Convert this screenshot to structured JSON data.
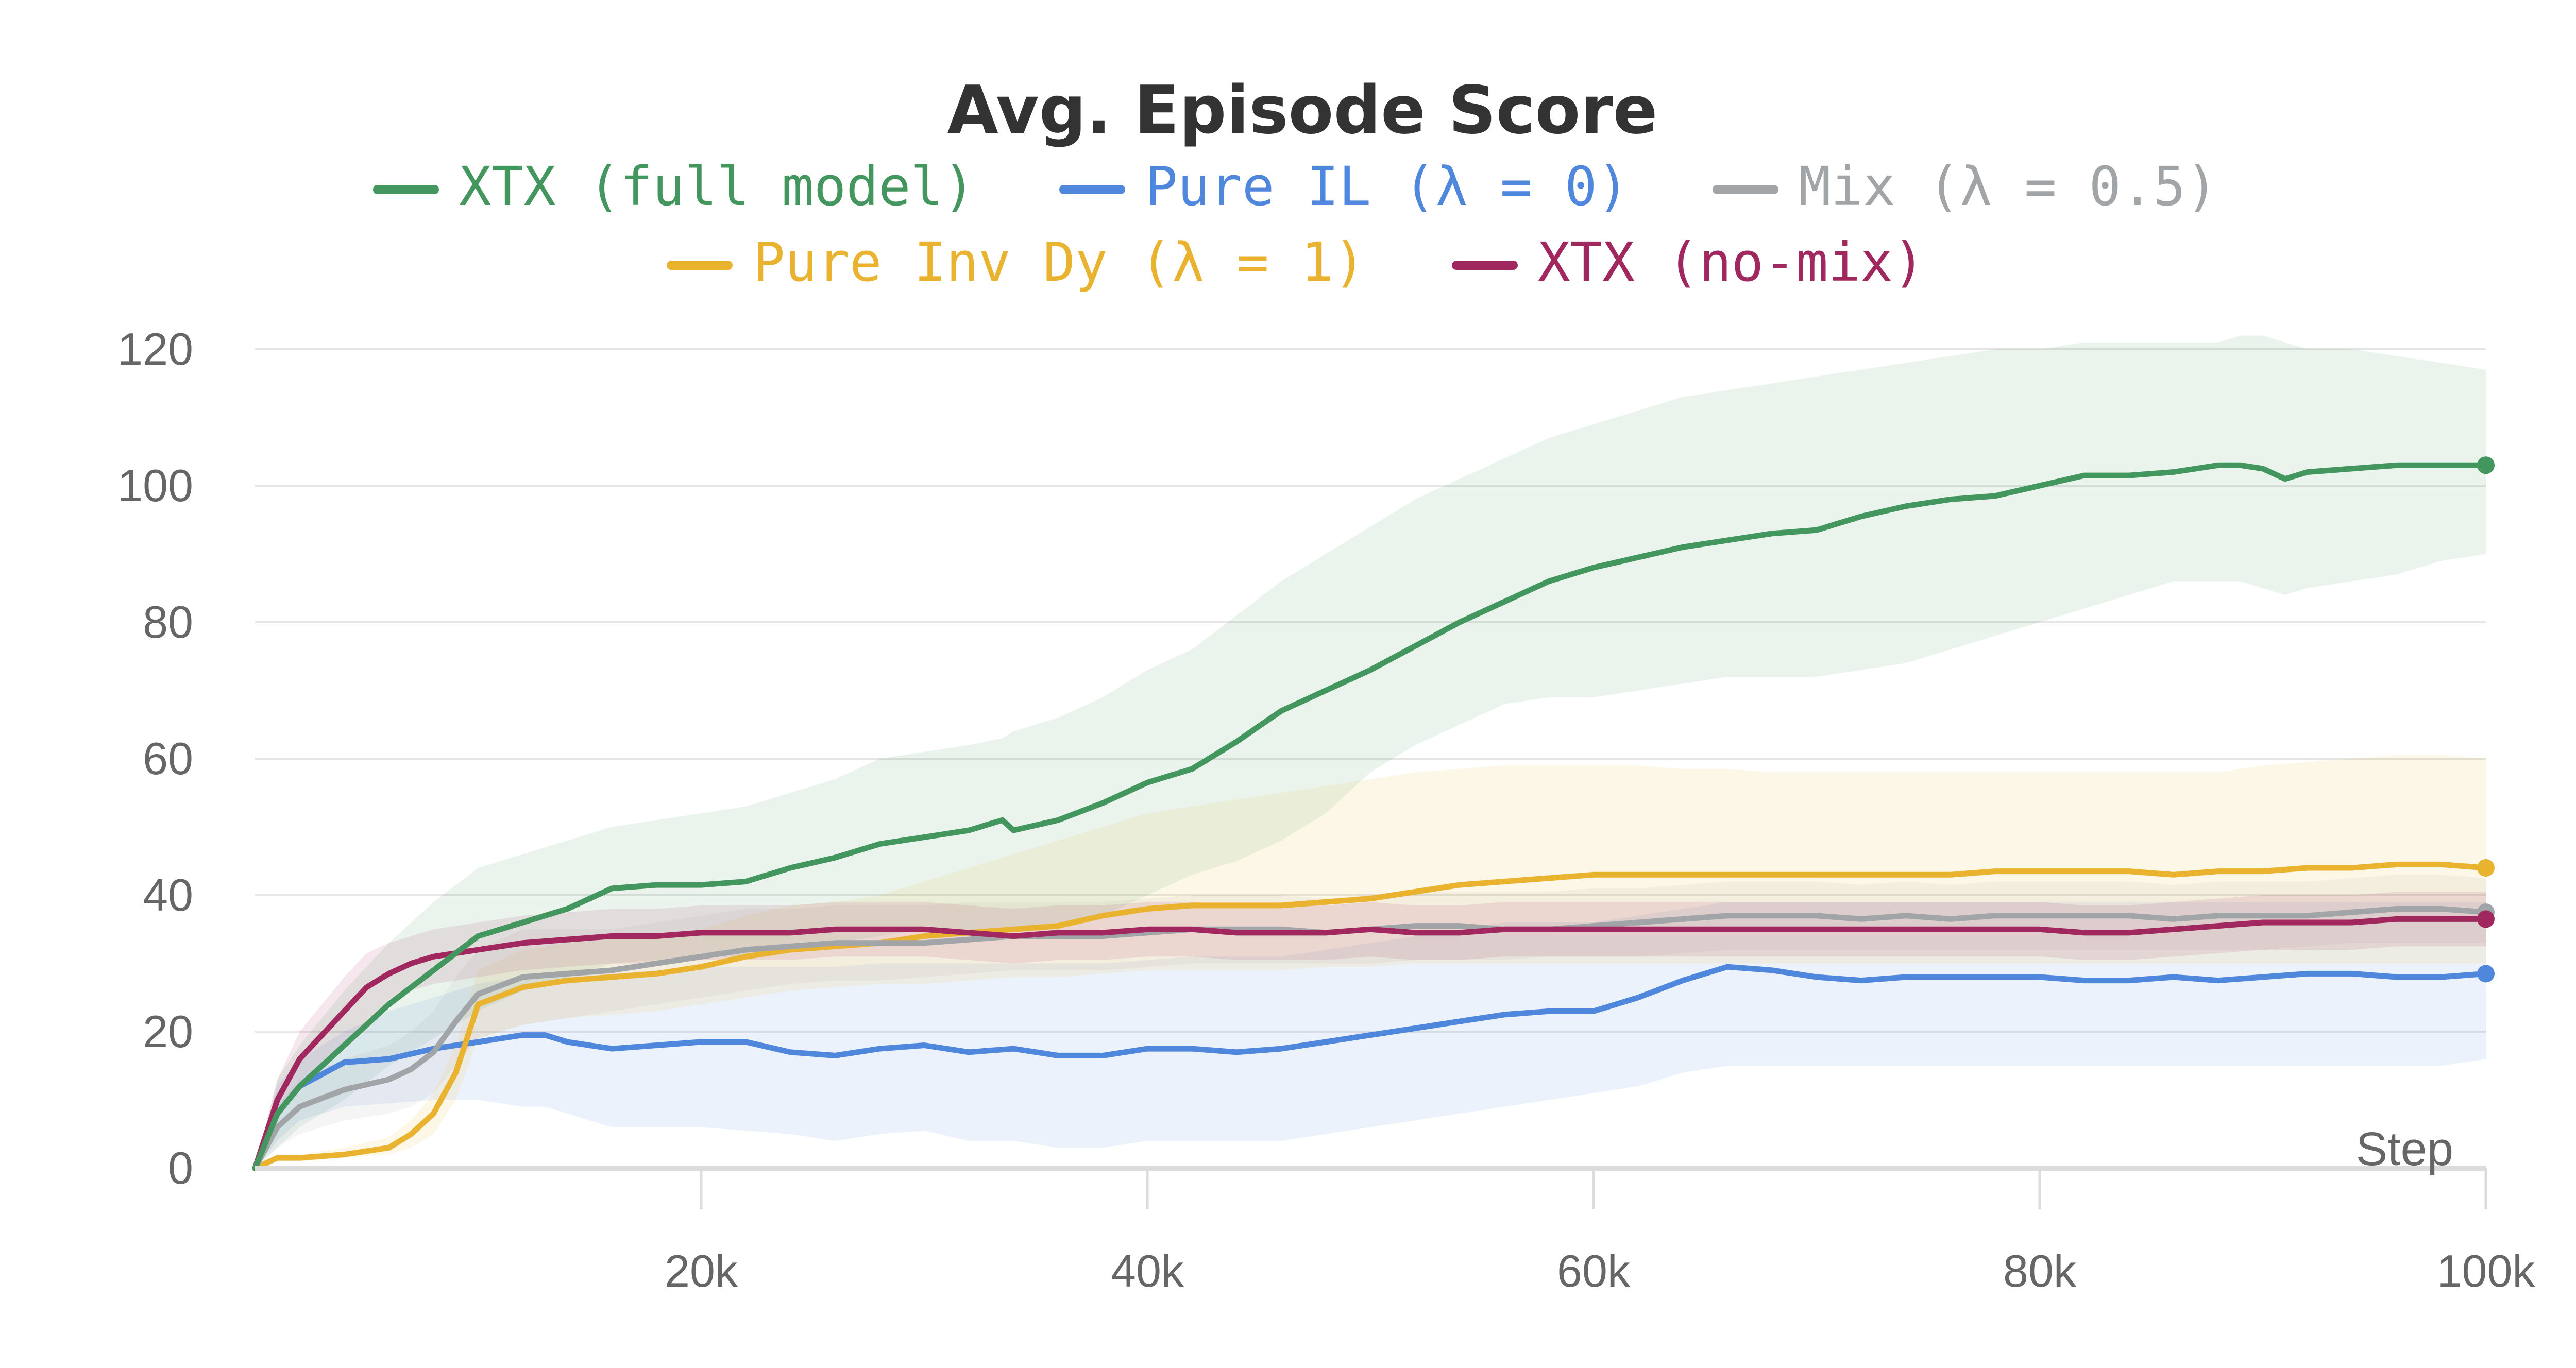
{
  "chart_data": {
    "type": "line",
    "title": "Avg. Episode Score",
    "xlabel": "Step",
    "ylabel": "",
    "xlim": [
      0,
      100000
    ],
    "ylim": [
      0,
      120
    ],
    "grid": true,
    "legend_position": "top",
    "y_ticks": [
      {
        "value": 0,
        "label": "0"
      },
      {
        "value": 20,
        "label": "20"
      },
      {
        "value": 40,
        "label": "40"
      },
      {
        "value": 60,
        "label": "60"
      },
      {
        "value": 80,
        "label": "80"
      },
      {
        "value": 100,
        "label": "100"
      },
      {
        "value": 120,
        "label": "120"
      }
    ],
    "x_ticks": [
      {
        "value": 20000,
        "label": "20k"
      },
      {
        "value": 40000,
        "label": "40k"
      },
      {
        "value": 60000,
        "label": "60k"
      },
      {
        "value": 80000,
        "label": "80k"
      },
      {
        "value": 100000,
        "label": "100k"
      }
    ],
    "series": [
      {
        "name": "XTX (full model)",
        "color": "#43975e",
        "x": [
          0,
          1000,
          2000,
          4000,
          6000,
          8000,
          10000,
          12000,
          14000,
          16000,
          18000,
          20000,
          22000,
          24000,
          26000,
          28000,
          30000,
          32000,
          33500,
          34000,
          36000,
          38000,
          40000,
          42000,
          44000,
          46000,
          48000,
          50000,
          52000,
          54000,
          56000,
          58000,
          60000,
          62000,
          64000,
          66000,
          68000,
          70000,
          72000,
          74000,
          76000,
          78000,
          80000,
          82000,
          84000,
          86000,
          88000,
          89000,
          90000,
          91000,
          92000,
          94000,
          96000,
          98000,
          100000
        ],
        "values": [
          0,
          8,
          12,
          18,
          24,
          29,
          34,
          36,
          38,
          41,
          41.5,
          41.5,
          42,
          44,
          45.5,
          47.5,
          48.5,
          49.5,
          51,
          49.5,
          51,
          53.5,
          56.5,
          58.5,
          62.5,
          67,
          70,
          73,
          76.5,
          80,
          83,
          86,
          88,
          89.5,
          91,
          92,
          93,
          93.5,
          95.5,
          97,
          98,
          98.5,
          100,
          101.5,
          101.5,
          102,
          103,
          103,
          102.5,
          101,
          102,
          102.5,
          103,
          103,
          103
        ],
        "band_lower": [
          0,
          3,
          6,
          10,
          15,
          19,
          23,
          26,
          28,
          30,
          30.5,
          31,
          31,
          32,
          33,
          34,
          35,
          35,
          34,
          35,
          36,
          37,
          40,
          43,
          45,
          48,
          52,
          58,
          62,
          65,
          68,
          69,
          69,
          70,
          71,
          72,
          72,
          72,
          73,
          74,
          76,
          78,
          80,
          82,
          84,
          86,
          86,
          86,
          85,
          84,
          85,
          86,
          87,
          89,
          90
        ],
        "band_upper": [
          0,
          13,
          18,
          26,
          33,
          39,
          44,
          46,
          48,
          50,
          51,
          52,
          53,
          55,
          57,
          60,
          61,
          62,
          63,
          64,
          66,
          69,
          73,
          76,
          81,
          86,
          90,
          94,
          98,
          101,
          104,
          107,
          109,
          111,
          113,
          114,
          115,
          116,
          117,
          118,
          119,
          120,
          120,
          121,
          121,
          121,
          121,
          122,
          122,
          121,
          120,
          120,
          119,
          118,
          117
        ]
      },
      {
        "name": "Pure IL (λ = 0)",
        "color": "#4f87dd",
        "x": [
          0,
          1000,
          2000,
          4000,
          6000,
          8000,
          10000,
          12000,
          13000,
          14000,
          16000,
          18000,
          20000,
          22000,
          24000,
          26000,
          28000,
          30000,
          32000,
          34000,
          36000,
          38000,
          40000,
          42000,
          44000,
          46000,
          48000,
          50000,
          52000,
          54000,
          56000,
          58000,
          60000,
          62000,
          64000,
          66000,
          68000,
          70000,
          72000,
          74000,
          76000,
          78000,
          80000,
          82000,
          84000,
          86000,
          88000,
          90000,
          92000,
          94000,
          96000,
          98000,
          100000
        ],
        "values": [
          0,
          8,
          12,
          15.5,
          16,
          17.5,
          18.5,
          19.5,
          19.5,
          18.5,
          17.5,
          18,
          18.5,
          18.5,
          17,
          16.5,
          17.5,
          18,
          17,
          17.5,
          16.5,
          16.5,
          17.5,
          17.5,
          17,
          17.5,
          18.5,
          19.5,
          20.5,
          21.5,
          22.5,
          23,
          23,
          25,
          27.5,
          29.5,
          29,
          28,
          27.5,
          28,
          28,
          28,
          28,
          27.5,
          27.5,
          28,
          27.5,
          28,
          28.5,
          28.5,
          28,
          28,
          28.5
        ],
        "band_lower": [
          0,
          4,
          7,
          9,
          9.5,
          10,
          10,
          9,
          9,
          8,
          6,
          6,
          6,
          5.5,
          5,
          4,
          5,
          5.5,
          4,
          4,
          3,
          3,
          4,
          4,
          4,
          4,
          5,
          6,
          7,
          8,
          9,
          10,
          11,
          12,
          14,
          15,
          15,
          15,
          15,
          15,
          15,
          15,
          15,
          15,
          15,
          15,
          15,
          15,
          15,
          15,
          15,
          15,
          16
        ],
        "band_upper": [
          0,
          12,
          16,
          20,
          23,
          25,
          27,
          28,
          28.5,
          28.5,
          28.5,
          29,
          29.5,
          29.5,
          29.5,
          29.5,
          30,
          30,
          30,
          30,
          30,
          30,
          30.5,
          31,
          31,
          31,
          32,
          33,
          34,
          35,
          36,
          36,
          36,
          37,
          38,
          39,
          39,
          39,
          39,
          39,
          39,
          39,
          39,
          39,
          39,
          39,
          39,
          39,
          39,
          39,
          39,
          39,
          39
        ]
      },
      {
        "name": "Mix (λ = 0.5)",
        "color": "#a2a5a8",
        "x": [
          0,
          1000,
          2000,
          4000,
          6000,
          7000,
          8000,
          9000,
          10000,
          12000,
          14000,
          16000,
          18000,
          20000,
          22000,
          24000,
          26000,
          28000,
          30000,
          32000,
          34000,
          36000,
          38000,
          40000,
          42000,
          44000,
          46000,
          48000,
          50000,
          52000,
          54000,
          56000,
          58000,
          60000,
          62000,
          64000,
          66000,
          68000,
          70000,
          72000,
          74000,
          76000,
          78000,
          80000,
          82000,
          84000,
          86000,
          88000,
          90000,
          92000,
          94000,
          96000,
          98000,
          100000
        ],
        "values": [
          0,
          6,
          9,
          11.5,
          13,
          14.5,
          17,
          21.5,
          25.5,
          28,
          28.5,
          29,
          30,
          31,
          32,
          32.5,
          33,
          33,
          33,
          33.5,
          34,
          34,
          34,
          34.5,
          35,
          35,
          35,
          34.5,
          35,
          35.5,
          35.5,
          35,
          35,
          35.5,
          36,
          36.5,
          37,
          37,
          37,
          36.5,
          37,
          36.5,
          37,
          37,
          37,
          37,
          36.5,
          37,
          37,
          37,
          37.5,
          38,
          38,
          37.5
        ],
        "band_lower": [
          0,
          3,
          5,
          7,
          8,
          9,
          11,
          15,
          19,
          21,
          22,
          23,
          24,
          25,
          26,
          27,
          27.5,
          27.5,
          28,
          28.5,
          29,
          29,
          29,
          29.5,
          30,
          30,
          30,
          30,
          30,
          30.5,
          30.5,
          30.5,
          31,
          31,
          31,
          31.5,
          32,
          32,
          32,
          32,
          32,
          32,
          32,
          32,
          32,
          32,
          32,
          32,
          32,
          32.5,
          33,
          33,
          33,
          33
        ],
        "band_upper": [
          0,
          9,
          13,
          16,
          18,
          20,
          23,
          28,
          32,
          35,
          35,
          35,
          36,
          37,
          38,
          38,
          38.5,
          38.5,
          38.5,
          39,
          39,
          39,
          39,
          39.5,
          40,
          40,
          40,
          39.5,
          40,
          40.5,
          40.5,
          40.5,
          40.5,
          41,
          41,
          41.5,
          42,
          42,
          42,
          41.5,
          42,
          41.5,
          42,
          42,
          42,
          42,
          41.5,
          42,
          42,
          42,
          42.5,
          43,
          43,
          42.5
        ]
      },
      {
        "name": "Pure Inv Dy (λ = 1)",
        "color": "#e9b32f",
        "x": [
          0,
          1000,
          2000,
          4000,
          6000,
          7000,
          8000,
          9000,
          10000,
          12000,
          14000,
          16000,
          18000,
          20000,
          22000,
          24000,
          26000,
          28000,
          30000,
          32000,
          34000,
          36000,
          38000,
          40000,
          42000,
          44000,
          46000,
          48000,
          50000,
          52000,
          54000,
          56000,
          58000,
          60000,
          62000,
          64000,
          66000,
          68000,
          70000,
          72000,
          74000,
          76000,
          78000,
          80000,
          82000,
          84000,
          86000,
          88000,
          90000,
          92000,
          94000,
          96000,
          98000,
          100000
        ],
        "values": [
          0,
          1.5,
          1.5,
          2,
          3,
          5,
          8,
          14,
          24,
          26.5,
          27.5,
          28,
          28.5,
          29.5,
          31,
          32,
          32.5,
          33,
          34,
          34.5,
          35,
          35.5,
          37,
          38,
          38.5,
          38.5,
          38.5,
          39,
          39.5,
          40.5,
          41.5,
          42,
          42.5,
          43,
          43,
          43,
          43,
          43,
          43,
          43,
          43,
          43,
          43.5,
          43.5,
          43.5,
          43.5,
          43,
          43.5,
          43.5,
          44,
          44,
          44.5,
          44.5,
          44
        ],
        "band_lower": [
          0,
          1,
          1,
          1.5,
          2,
          3,
          5,
          10,
          19,
          21,
          22,
          22.5,
          23,
          24,
          25,
          26,
          26.5,
          27,
          27,
          27.5,
          28,
          28,
          28.5,
          29,
          29,
          29,
          29,
          29.5,
          29.5,
          30,
          30,
          30,
          30,
          30,
          30,
          30,
          30,
          30,
          30,
          30,
          30,
          30,
          30,
          30,
          30,
          30,
          30,
          30,
          30,
          30,
          30,
          30,
          30,
          30
        ],
        "band_upper": [
          0,
          2,
          2,
          3,
          4.5,
          7,
          11,
          18,
          29,
          32,
          33,
          33.5,
          34,
          35,
          37,
          38.5,
          39,
          40,
          42,
          44,
          46,
          48,
          50,
          52,
          53,
          54,
          55,
          56,
          57,
          58,
          58.5,
          59,
          59,
          59,
          59,
          58.5,
          58.5,
          58,
          58,
          58,
          58,
          58,
          58,
          58,
          58,
          58,
          58,
          58,
          59,
          59.5,
          60,
          60.5,
          60.5,
          60
        ]
      },
      {
        "name": "XTX (no-mix)",
        "color": "#a0285f",
        "x": [
          0,
          1000,
          2000,
          4000,
          5000,
          6000,
          7000,
          8000,
          10000,
          12000,
          14000,
          16000,
          18000,
          20000,
          22000,
          24000,
          26000,
          28000,
          30000,
          32000,
          34000,
          36000,
          38000,
          40000,
          42000,
          44000,
          46000,
          48000,
          50000,
          52000,
          54000,
          56000,
          58000,
          60000,
          62000,
          64000,
          66000,
          68000,
          70000,
          72000,
          74000,
          76000,
          78000,
          80000,
          82000,
          84000,
          86000,
          88000,
          90000,
          92000,
          94000,
          96000,
          98000,
          100000
        ],
        "values": [
          0,
          10,
          16,
          23,
          26.5,
          28.5,
          30,
          31,
          32,
          33,
          33.5,
          34,
          34,
          34.5,
          34.5,
          34.5,
          35,
          35,
          35,
          34.5,
          34,
          34.5,
          34.5,
          35,
          35,
          34.5,
          34.5,
          34.5,
          35,
          34.5,
          34.5,
          35,
          35,
          35,
          35,
          35,
          35,
          35,
          35,
          35,
          35,
          35,
          35,
          35,
          34.5,
          34.5,
          35,
          35.5,
          36,
          36,
          36,
          36.5,
          36.5,
          36.5
        ],
        "band_lower": [
          0,
          7,
          12,
          18,
          21.5,
          24,
          26,
          27,
          28,
          29,
          29.5,
          30,
          30,
          30.5,
          30.5,
          30.5,
          31,
          31,
          31,
          30.5,
          30,
          30.5,
          30.5,
          31,
          31,
          30.5,
          30.5,
          30.5,
          31,
          30.5,
          30.5,
          31,
          31,
          31,
          31,
          31,
          31,
          31,
          31,
          31,
          31,
          31,
          31,
          31,
          30.5,
          30.5,
          31,
          31.5,
          32,
          32,
          32,
          32.5,
          32.5,
          32.5
        ],
        "band_upper": [
          0,
          13,
          20,
          28,
          31.5,
          33,
          34,
          35,
          36,
          37,
          37.5,
          38,
          38,
          38.5,
          38.5,
          38.5,
          39,
          39,
          39,
          38.5,
          38,
          38.5,
          38.5,
          39,
          39,
          38.5,
          38.5,
          38.5,
          39,
          38.5,
          38.5,
          39,
          39,
          39,
          39,
          39,
          39,
          39,
          39,
          39,
          39,
          39,
          39,
          39,
          38.5,
          38.5,
          39,
          39.5,
          40,
          40,
          40,
          40.5,
          40.5,
          40.5
        ]
      }
    ],
    "legend_rows": [
      [
        0,
        1,
        2
      ],
      [
        3,
        4
      ]
    ]
  }
}
